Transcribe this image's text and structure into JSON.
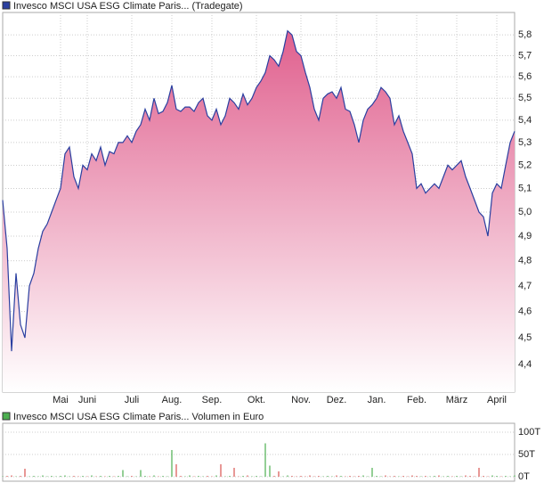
{
  "chart_data": [
    {
      "type": "line",
      "name": "Invesco MSCI USA ESG Climate Paris... (Tradegate)",
      "log_scale": true,
      "grid": true,
      "line_color": "#2a3fa0",
      "fill_top": "#e0608e",
      "fill_bottom": "#ffffff",
      "categories": [
        null,
        null,
        null,
        null,
        null,
        null,
        null,
        null,
        null,
        null,
        null,
        null,
        null,
        "Mai",
        null,
        null,
        null,
        null,
        null,
        "Juni",
        null,
        null,
        null,
        null,
        null,
        null,
        null,
        null,
        null,
        "Juli",
        null,
        null,
        null,
        null,
        null,
        null,
        null,
        null,
        "Aug.",
        null,
        null,
        null,
        null,
        null,
        null,
        null,
        null,
        "Sep.",
        null,
        null,
        null,
        null,
        null,
        null,
        null,
        null,
        null,
        "Okt.",
        null,
        null,
        null,
        null,
        null,
        null,
        null,
        null,
        null,
        "Nov.",
        null,
        null,
        null,
        null,
        null,
        null,
        null,
        "Dez.",
        null,
        null,
        null,
        null,
        null,
        null,
        null,
        null,
        "Jan.",
        null,
        null,
        null,
        null,
        null,
        null,
        null,
        null,
        "Feb.",
        null,
        null,
        null,
        null,
        null,
        null,
        null,
        null,
        "März",
        null,
        null,
        null,
        null,
        null,
        null,
        null,
        null,
        "April",
        null,
        null,
        null,
        null
      ],
      "values": [
        5.05,
        4.85,
        4.45,
        4.75,
        4.55,
        4.5,
        4.7,
        4.75,
        4.85,
        4.92,
        4.95,
        5.0,
        5.05,
        5.1,
        5.25,
        5.28,
        5.15,
        5.1,
        5.2,
        5.18,
        5.25,
        5.22,
        5.28,
        5.2,
        5.26,
        5.25,
        5.3,
        5.3,
        5.33,
        5.3,
        5.35,
        5.38,
        5.45,
        5.4,
        5.5,
        5.43,
        5.44,
        5.48,
        5.56,
        5.45,
        5.44,
        5.46,
        5.46,
        5.44,
        5.48,
        5.5,
        5.42,
        5.4,
        5.45,
        5.38,
        5.42,
        5.5,
        5.48,
        5.45,
        5.52,
        5.47,
        5.5,
        5.55,
        5.58,
        5.62,
        5.7,
        5.68,
        5.65,
        5.72,
        5.82,
        5.8,
        5.72,
        5.7,
        5.62,
        5.55,
        5.45,
        5.4,
        5.5,
        5.52,
        5.53,
        5.5,
        5.55,
        5.45,
        5.44,
        5.38,
        5.3,
        5.4,
        5.45,
        5.47,
        5.5,
        5.55,
        5.53,
        5.5,
        5.38,
        5.42,
        5.35,
        5.3,
        5.25,
        5.1,
        5.12,
        5.08,
        5.1,
        5.12,
        5.1,
        5.15,
        5.2,
        5.18,
        5.2,
        5.22,
        5.15,
        5.1,
        5.05,
        5.0,
        4.98,
        4.9,
        5.08,
        5.12,
        5.1,
        5.2,
        5.3,
        5.35
      ],
      "ylim": [
        4.3,
        5.91
      ],
      "yticks": [
        {
          "value": 4.4,
          "label": "4,4"
        },
        {
          "value": 4.5,
          "label": "4,5"
        },
        {
          "value": 4.6,
          "label": "4,6"
        },
        {
          "value": 4.7,
          "label": "4,7"
        },
        {
          "value": 4.8,
          "label": "4,8"
        },
        {
          "value": 4.9,
          "label": "4,9"
        },
        {
          "value": 5.0,
          "label": "5,0"
        },
        {
          "value": 5.1,
          "label": "5,1"
        },
        {
          "value": 5.2,
          "label": "5,2"
        },
        {
          "value": 5.3,
          "label": "5,3"
        },
        {
          "value": 5.4,
          "label": "5,4"
        },
        {
          "value": 5.5,
          "label": "5,5"
        },
        {
          "value": 5.6,
          "label": "5,6"
        },
        {
          "value": 5.7,
          "label": "5,7"
        },
        {
          "value": 5.8,
          "label": "5,8"
        }
      ]
    },
    {
      "type": "bar",
      "name": "Invesco MSCI USA ESG Climate Paris... Volumen in Euro",
      "grid": true,
      "legend_color": "#4caf50",
      "up_color": "#4caf50",
      "down_color": "#d9534f",
      "values": [
        1,
        2,
        3,
        1,
        2,
        18,
        1,
        2,
        1,
        3,
        1,
        2,
        1,
        2,
        3,
        1,
        2,
        1,
        2,
        1,
        3,
        1,
        2,
        1,
        2,
        1,
        2,
        15,
        1,
        2,
        1,
        15,
        2,
        1,
        3,
        1,
        2,
        1,
        60,
        28,
        2,
        1,
        3,
        1,
        2,
        1,
        2,
        1,
        3,
        28,
        1,
        2,
        20,
        1,
        2,
        3,
        1,
        2,
        1,
        75,
        25,
        2,
        12,
        1,
        3,
        2,
        1,
        2,
        1,
        3,
        1,
        2,
        1,
        2,
        1,
        3,
        2,
        1,
        2,
        1,
        2,
        3,
        1,
        20,
        2,
        1,
        3,
        1,
        2,
        1,
        2,
        1,
        3,
        2,
        1,
        2,
        1,
        2,
        3,
        1,
        2,
        1,
        2,
        1,
        3,
        2,
        1,
        20,
        2,
        1,
        3,
        2,
        1,
        2,
        1,
        3
      ],
      "ylim": [
        0,
        120
      ],
      "yticks": [
        {
          "value": 0,
          "label": "0T"
        },
        {
          "value": 50,
          "label": "50T"
        },
        {
          "value": 100,
          "label": "100T"
        }
      ]
    }
  ]
}
